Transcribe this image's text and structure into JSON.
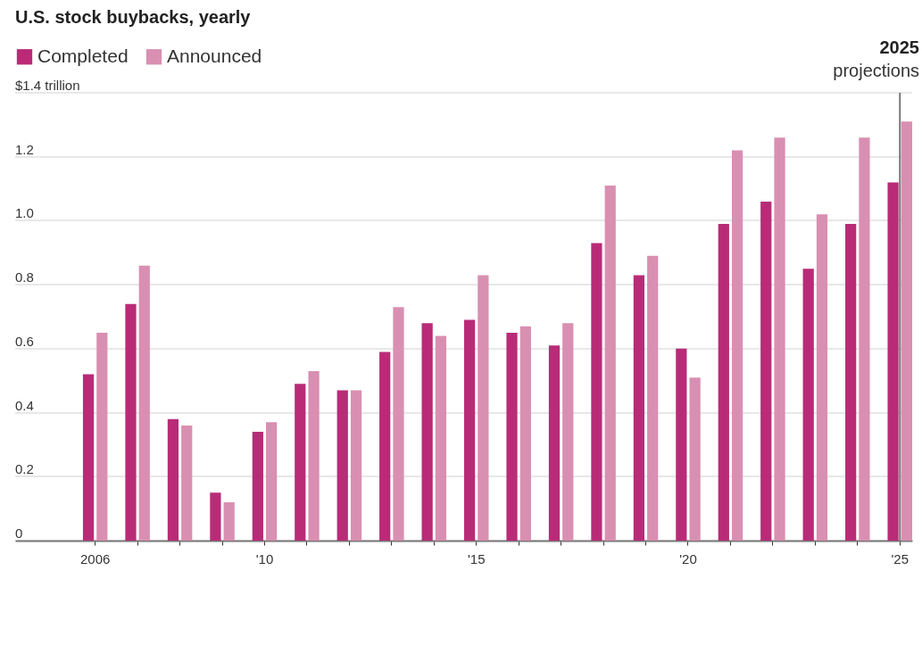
{
  "chart_data": {
    "type": "bar",
    "title": "U.S. stock buybacks, yearly",
    "categories": [
      "2006",
      null,
      null,
      null,
      "'10",
      null,
      null,
      null,
      null,
      "'15",
      null,
      null,
      null,
      null,
      "'20",
      null,
      null,
      null,
      null,
      "'25"
    ],
    "series": [
      {
        "name": "Completed",
        "color": "#b92b77",
        "values": [
          0.52,
          0.74,
          0.38,
          0.15,
          0.34,
          0.49,
          0.47,
          0.59,
          0.68,
          0.69,
          0.65,
          0.61,
          0.93,
          0.83,
          0.6,
          0.99,
          1.06,
          0.85,
          0.99,
          1.12
        ]
      },
      {
        "name": "Announced",
        "color": "#d98fb1",
        "values": [
          0.65,
          0.86,
          0.36,
          0.12,
          0.37,
          0.53,
          0.47,
          0.73,
          0.64,
          0.83,
          0.67,
          0.68,
          1.11,
          0.89,
          0.51,
          1.22,
          1.26,
          1.02,
          1.26,
          1.31
        ]
      }
    ],
    "ylim": [
      0,
      1.4
    ],
    "yticks": [
      0,
      0.2,
      0.4,
      0.6,
      0.8,
      {
        "value": 1,
        "label": "1.0"
      },
      1.2,
      {
        "value": 1.4,
        "label": "$1.4 trillion"
      }
    ],
    "grid": "y",
    "legend": "top left",
    "ref_lines": [
      {
        "axis": "x",
        "value": "'25",
        "label": "2025",
        "color": "#777777"
      }
    ],
    "annotations": [
      "projections"
    ]
  }
}
